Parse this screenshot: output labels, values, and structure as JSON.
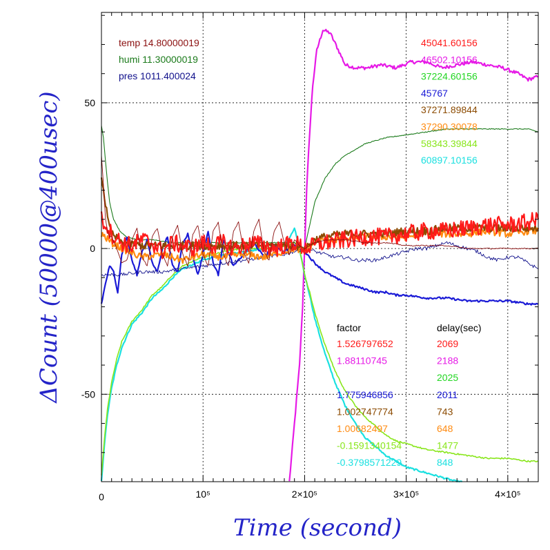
{
  "chart_data": {
    "type": "line",
    "xlabel": "Time (second)",
    "ylabel": "ΔCount (50000@400usec)",
    "xlim": [
      0,
      430000
    ],
    "ylim": [
      -80,
      81
    ],
    "grid": true,
    "x_ticks": [
      {
        "value": 0,
        "label": "0"
      },
      {
        "value": 100000,
        "label": "10⁵"
      },
      {
        "value": 200000,
        "label": "2×10⁵"
      },
      {
        "value": 300000,
        "label": "3×10⁵"
      },
      {
        "value": 400000,
        "label": "4×10⁵"
      }
    ],
    "y_ticks": [
      {
        "value": 50,
        "label": "50"
      },
      {
        "value": 0,
        "label": "0"
      },
      {
        "value": -50,
        "label": "-50"
      }
    ],
    "env": [
      {
        "name": "temp",
        "value": "14.80000019",
        "color": "#8b1010"
      },
      {
        "name": "humi",
        "value": "11.30000019",
        "color": "#1a7a1a"
      },
      {
        "name": "pres",
        "value": "1011.400024",
        "color": "#10108b"
      }
    ],
    "totals": [
      {
        "value": "45041.60156",
        "color": "#ff1a1a"
      },
      {
        "value": "46502.10156",
        "color": "#e619e6"
      },
      {
        "value": "37224.60156",
        "color": "#22d622"
      },
      {
        "value": "45767",
        "color": "#1a1ad6"
      },
      {
        "value": "37271.89844",
        "color": "#8b4a00"
      },
      {
        "value": "37290.30078",
        "color": "#ff8a10"
      },
      {
        "value": "58343.39844",
        "color": "#88e61a"
      },
      {
        "value": "60897.10156",
        "color": "#1ae0e0"
      }
    ],
    "table": {
      "factor_header": "factor",
      "delay_header": "delay(sec)",
      "rows": [
        {
          "factor": "1.526797652",
          "delay": "2069",
          "color": "#ff1a1a"
        },
        {
          "factor": "1.88110745",
          "delay": "2188",
          "color": "#e619e6"
        },
        {
          "factor": "",
          "delay": "2025",
          "color": "#22d622"
        },
        {
          "factor": "1.775946856",
          "delay": "2011",
          "color": "#1a1ad6"
        },
        {
          "factor": "1.002747774",
          "delay": "743",
          "color": "#8b4a00"
        },
        {
          "factor": "1.00682497",
          "delay": "648",
          "color": "#ff8a10"
        },
        {
          "factor": "-0.1591340154",
          "delay": "1477",
          "color": "#88e61a"
        },
        {
          "factor": "-0.3798571229",
          "delay": "848",
          "color": "#1ae0e0"
        }
      ]
    },
    "series": [
      {
        "color": "#e619e6",
        "width": 2.2,
        "noise": 0.6,
        "x": [
          185000,
          190000,
          195000,
          198000,
          200000,
          202000,
          205000,
          208000,
          212000,
          218000,
          225000,
          232000,
          240000,
          250000,
          262000,
          275000,
          290000,
          305000,
          320000,
          335000,
          350000,
          365000,
          380000,
          395000,
          410000,
          420000,
          430000
        ],
        "y": [
          -80,
          -60,
          -40,
          -20,
          0,
          20,
          40,
          56,
          68,
          75,
          74,
          69,
          63,
          62,
          62,
          63,
          62,
          64,
          64,
          62,
          63,
          64,
          63,
          62,
          60,
          58,
          59
        ]
      },
      {
        "color": "#1ae0e0",
        "width": 2.2,
        "noise": 0.3,
        "x": [
          0,
          3000,
          6000,
          10000,
          15000,
          20000,
          30000,
          40000,
          50000,
          60000,
          70000,
          80000,
          100000,
          120000,
          140000,
          160000,
          180000,
          186000,
          190000,
          195000,
          200000,
          205000,
          210000,
          220000,
          230000,
          240000,
          250000,
          260000,
          270000,
          280000,
          290000,
          300000,
          310000,
          320000,
          330000,
          340000,
          350000,
          355000
        ],
        "y": [
          -80,
          -67,
          -57,
          -48,
          -40,
          -34,
          -26,
          -22,
          -17,
          -14,
          -10,
          -7,
          -4,
          -2,
          -1,
          0,
          1,
          4,
          7,
          0,
          -9,
          -16,
          -24,
          -36,
          -46,
          -54,
          -60,
          -65,
          -68,
          -71,
          -73,
          -75,
          -76,
          -77,
          -78,
          -79,
          -80,
          -80
        ]
      },
      {
        "color": "#88e61a",
        "width": 1.6,
        "noise": 0.25,
        "x": [
          0,
          3000,
          6000,
          10000,
          15000,
          20000,
          30000,
          40000,
          50000,
          60000,
          70000,
          80000,
          100000,
          120000,
          140000,
          160000,
          180000,
          190000,
          195000,
          200000,
          205000,
          210000,
          220000,
          230000,
          240000,
          250000,
          260000,
          270000,
          280000,
          290000,
          300000,
          320000,
          340000,
          360000,
          380000,
          400000,
          420000,
          430000
        ],
        "y": [
          -78,
          -65,
          -55,
          -46,
          -38,
          -32,
          -25,
          -21,
          -16,
          -13,
          -9,
          -6,
          -3,
          -1,
          0,
          0,
          1,
          2,
          0,
          -9,
          -15,
          -22,
          -33,
          -42,
          -49,
          -54,
          -58,
          -61,
          -64,
          -66,
          -67,
          -69,
          -70,
          -71,
          -72,
          -72,
          -73,
          -73
        ]
      },
      {
        "color": "#1a7a1a",
        "width": 1.1,
        "noise": 0.15,
        "x": [
          0,
          2000,
          5000,
          8000,
          12000,
          18000,
          25000,
          35000,
          50000,
          70000,
          100000,
          130000,
          160000,
          190000,
          200000,
          205000,
          210000,
          220000,
          230000,
          240000,
          250000,
          260000,
          270000,
          280000,
          300000,
          320000,
          340000,
          360000,
          380000,
          400000,
          420000,
          430000
        ],
        "y": [
          42,
          38,
          26,
          16,
          10,
          6,
          4,
          3,
          3,
          2,
          2,
          2,
          2,
          2,
          0,
          8,
          16,
          24,
          29,
          32,
          34,
          36,
          37,
          38,
          39,
          40,
          41,
          41,
          41,
          41,
          41,
          40
        ]
      },
      {
        "color": "#1a1ad6",
        "width": 2.2,
        "noise": 0.35,
        "x": [
          0,
          4000,
          8000,
          12000,
          16000,
          20000,
          25000,
          30000,
          35000,
          40000,
          45000,
          50000,
          55000,
          60000,
          65000,
          70000,
          75000,
          80000,
          85000,
          90000,
          95000,
          100000,
          105000,
          110000,
          115000,
          120000,
          130000,
          140000,
          150000,
          160000,
          170000,
          180000,
          190000,
          195000,
          200000,
          205000,
          210000,
          220000,
          230000,
          240000,
          250000,
          260000,
          270000,
          280000,
          290000,
          300000,
          320000,
          340000,
          360000,
          380000,
          400000,
          420000,
          430000
        ],
        "y": [
          -19,
          -12,
          -6,
          -8,
          -15,
          -2,
          4,
          -4,
          -9,
          -1,
          3,
          -5,
          -8,
          0,
          4,
          -6,
          -8,
          2,
          5,
          -3,
          -9,
          -2,
          6,
          -5,
          -9,
          3,
          -6,
          -2,
          2,
          -3,
          1,
          -1,
          1,
          0,
          -1,
          -3,
          -5,
          -8,
          -10,
          -12,
          -13,
          -14,
          -15,
          -15,
          -16,
          -16,
          -17,
          -17,
          -18,
          -18,
          -18,
          -19,
          -19
        ]
      },
      {
        "color": "#10108b",
        "width": 0.9,
        "noise": 0.6,
        "x": [
          0,
          20000,
          40000,
          60000,
          80000,
          100000,
          120000,
          140000,
          160000,
          180000,
          200000,
          210000,
          220000,
          230000,
          240000,
          250000,
          260000,
          270000,
          280000,
          290000,
          300000,
          310000,
          320000,
          330000,
          340000,
          350000,
          360000,
          370000,
          380000,
          390000,
          400000,
          410000,
          420000,
          430000
        ],
        "y": [
          -9,
          -9,
          -8,
          -8,
          -7,
          -6,
          -5,
          -4,
          -3,
          -2,
          0,
          -1,
          -2,
          -3,
          -3,
          -4,
          -4,
          -4,
          -3,
          -2,
          -1,
          0,
          0,
          1,
          2,
          1,
          0,
          -1,
          -3,
          -4,
          -3,
          -3,
          -5,
          -7
        ]
      },
      {
        "color": "#ff8a10",
        "width": 2.2,
        "noise": 1.2,
        "x": [
          0,
          10000,
          20000,
          40000,
          60000,
          80000,
          100000,
          120000,
          140000,
          160000,
          180000,
          190000,
          200000,
          210000,
          220000,
          240000,
          260000,
          280000,
          300000,
          320000,
          340000,
          360000,
          380000,
          400000,
          420000,
          430000
        ],
        "y": [
          5,
          2,
          0,
          -3,
          -2,
          -4,
          -2,
          -3,
          -2,
          -3,
          -1,
          0,
          -1,
          2,
          3,
          3,
          4,
          4,
          4,
          5,
          5,
          5,
          6,
          5,
          6,
          6
        ]
      },
      {
        "color": "#8b4a00",
        "width": 2.2,
        "noise": 1.4,
        "x": [
          0,
          3000,
          6000,
          10000,
          20000,
          40000,
          60000,
          80000,
          100000,
          120000,
          140000,
          160000,
          180000,
          190000,
          200000,
          210000,
          220000,
          240000,
          260000,
          280000,
          300000,
          320000,
          340000,
          360000,
          380000,
          400000,
          420000,
          430000
        ],
        "y": [
          25,
          18,
          10,
          5,
          2,
          1,
          1,
          1,
          1,
          1,
          1,
          1,
          1,
          1,
          0,
          3,
          4,
          5,
          5,
          5,
          6,
          6,
          7,
          7,
          7,
          7,
          7,
          7
        ]
      },
      {
        "color": "#ff1a1a",
        "width": 2.2,
        "noise": 3.0,
        "x": [
          0,
          5000,
          10000,
          20000,
          30000,
          40000,
          50000,
          60000,
          70000,
          80000,
          90000,
          100000,
          110000,
          120000,
          130000,
          140000,
          150000,
          160000,
          170000,
          180000,
          190000,
          200000,
          210000,
          220000,
          240000,
          260000,
          280000,
          300000,
          320000,
          340000,
          360000,
          380000,
          400000,
          420000,
          430000
        ],
        "y": [
          10,
          8,
          5,
          2,
          1,
          3,
          2,
          -1,
          2,
          1,
          0,
          2,
          1,
          2,
          0,
          1,
          2,
          1,
          0,
          1,
          2,
          0,
          1,
          2,
          3,
          4,
          4,
          5,
          6,
          6,
          7,
          8,
          8,
          9,
          10
        ]
      },
      {
        "color": "#8b1010",
        "width": 0.9,
        "noise": 0.2,
        "x": [
          0,
          2000,
          4000,
          6000,
          8000,
          10000,
          15000,
          20000,
          25000,
          30000,
          35000,
          40000,
          45000,
          50000,
          55000,
          60000,
          65000,
          70000,
          75000,
          80000,
          85000,
          90000,
          95000,
          100000,
          105000,
          110000,
          115000,
          120000,
          125000,
          130000,
          135000,
          140000,
          145000,
          150000,
          155000,
          160000,
          165000,
          170000,
          175000,
          180000,
          185000,
          190000,
          195000,
          200000,
          210000,
          220000,
          240000,
          260000,
          280000,
          300000,
          320000,
          340000,
          360000,
          380000,
          400000,
          430000
        ],
        "y": [
          32,
          22,
          10,
          6,
          4,
          4,
          0,
          -5,
          -4,
          3,
          7,
          -3,
          -6,
          4,
          7,
          -2,
          -6,
          4,
          8,
          -2,
          -6,
          5,
          8,
          -2,
          -6,
          6,
          9,
          -2,
          -6,
          6,
          9,
          -1,
          -5,
          6,
          10,
          -1,
          -4,
          6,
          9,
          2,
          -2,
          3,
          1,
          0,
          2,
          3,
          3,
          2,
          2,
          1,
          1,
          1,
          0,
          0,
          0,
          0
        ]
      }
    ]
  }
}
